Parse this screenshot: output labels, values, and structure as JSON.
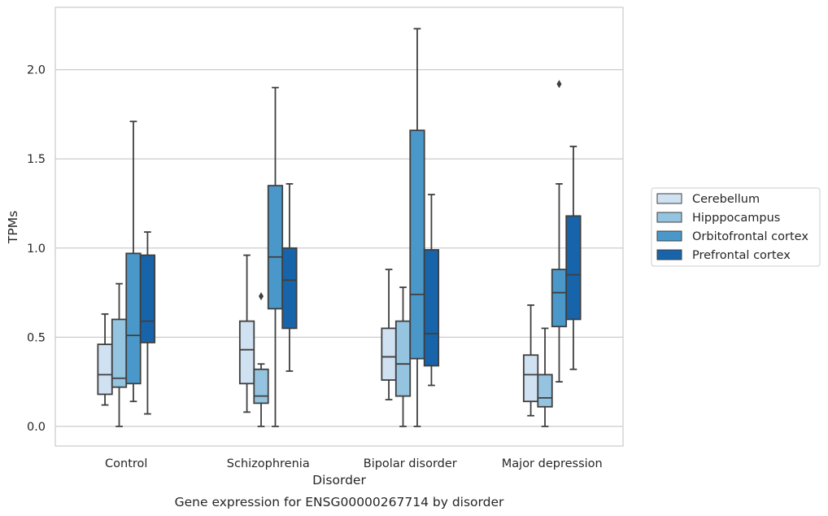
{
  "chart_data": {
    "type": "box",
    "caption": "Gene expression for ENSG00000267714 by disorder",
    "xlabel": "Disorder",
    "ylabel": "TPMs",
    "ylim": [
      -0.11,
      2.35
    ],
    "yticks": [
      0.0,
      0.5,
      1.0,
      1.5,
      2.0
    ],
    "ytick_labels": [
      "0.0",
      "0.5",
      "1.0",
      "1.5",
      "2.0"
    ],
    "grid": "horizontal",
    "legend_position": "right",
    "categories": [
      "Control",
      "Schizophrenia",
      "Bipolar disorder",
      "Major depression"
    ],
    "series": [
      {
        "name": "Cerebellum",
        "color": "#d0e1f2",
        "boxes": [
          {
            "whisker_low": 0.12,
            "q1": 0.18,
            "median": 0.29,
            "q3": 0.46,
            "whisker_high": 0.63,
            "outliers": []
          },
          {
            "whisker_low": 0.08,
            "q1": 0.24,
            "median": 0.43,
            "q3": 0.59,
            "whisker_high": 0.96,
            "outliers": []
          },
          {
            "whisker_low": 0.15,
            "q1": 0.26,
            "median": 0.39,
            "q3": 0.55,
            "whisker_high": 0.88,
            "outliers": []
          },
          {
            "whisker_low": 0.06,
            "q1": 0.14,
            "median": 0.29,
            "q3": 0.4,
            "whisker_high": 0.68,
            "outliers": []
          }
        ]
      },
      {
        "name": "Hipppocampus",
        "color": "#94c4df",
        "boxes": [
          {
            "whisker_low": 0.0,
            "q1": 0.22,
            "median": 0.27,
            "q3": 0.6,
            "whisker_high": 0.8,
            "outliers": []
          },
          {
            "whisker_low": 0.0,
            "q1": 0.13,
            "median": 0.17,
            "q3": 0.32,
            "whisker_high": 0.35,
            "outliers": [
              0.73
            ]
          },
          {
            "whisker_low": 0.0,
            "q1": 0.17,
            "median": 0.35,
            "q3": 0.59,
            "whisker_high": 0.78,
            "outliers": []
          },
          {
            "whisker_low": 0.0,
            "q1": 0.11,
            "median": 0.16,
            "q3": 0.29,
            "whisker_high": 0.55,
            "outliers": []
          }
        ]
      },
      {
        "name": "Orbitofrontal cortex",
        "color": "#4a98c9",
        "boxes": [
          {
            "whisker_low": 0.14,
            "q1": 0.24,
            "median": 0.51,
            "q3": 0.97,
            "whisker_high": 1.71,
            "outliers": []
          },
          {
            "whisker_low": 0.0,
            "q1": 0.66,
            "median": 0.95,
            "q3": 1.35,
            "whisker_high": 1.9,
            "outliers": []
          },
          {
            "whisker_low": 0.0,
            "q1": 0.38,
            "median": 0.74,
            "q3": 1.66,
            "whisker_high": 2.23,
            "outliers": []
          },
          {
            "whisker_low": 0.25,
            "q1": 0.56,
            "median": 0.75,
            "q3": 0.88,
            "whisker_high": 1.36,
            "outliers": [
              1.92
            ]
          }
        ]
      },
      {
        "name": "Prefrontal cortex",
        "color": "#1764ab",
        "boxes": [
          {
            "whisker_low": 0.07,
            "q1": 0.47,
            "median": 0.59,
            "q3": 0.96,
            "whisker_high": 1.09,
            "outliers": []
          },
          {
            "whisker_low": 0.31,
            "q1": 0.55,
            "median": 0.82,
            "q3": 1.0,
            "whisker_high": 1.36,
            "outliers": []
          },
          {
            "whisker_low": 0.23,
            "q1": 0.34,
            "median": 0.52,
            "q3": 0.99,
            "whisker_high": 1.3,
            "outliers": []
          },
          {
            "whisker_low": 0.32,
            "q1": 0.6,
            "median": 0.85,
            "q3": 1.18,
            "whisker_high": 1.57,
            "outliers": []
          }
        ]
      }
    ]
  }
}
